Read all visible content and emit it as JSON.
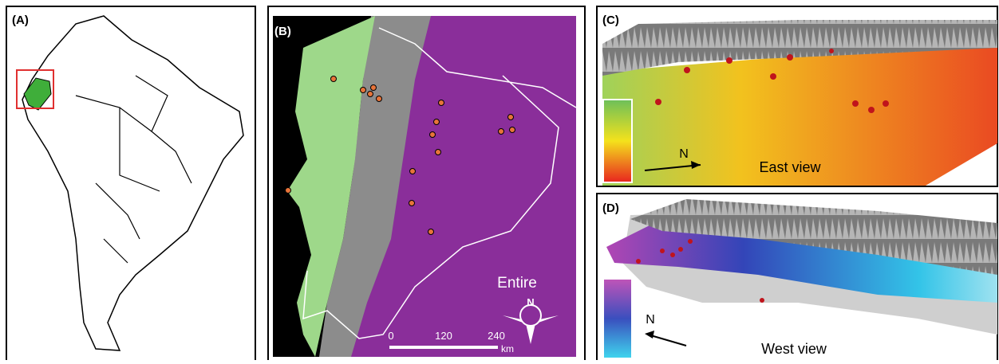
{
  "panels": {
    "a": {
      "label": "(A)"
    },
    "b": {
      "label": "(B)",
      "caption": "Entire",
      "scale": {
        "ticks": [
          "0",
          "120",
          "240"
        ],
        "unit": "km"
      },
      "compass": "N"
    },
    "c": {
      "label": "(C)",
      "north": "N",
      "caption": "East view"
    },
    "d": {
      "label": "(D)",
      "north": "N",
      "caption": "West view"
    }
  }
}
